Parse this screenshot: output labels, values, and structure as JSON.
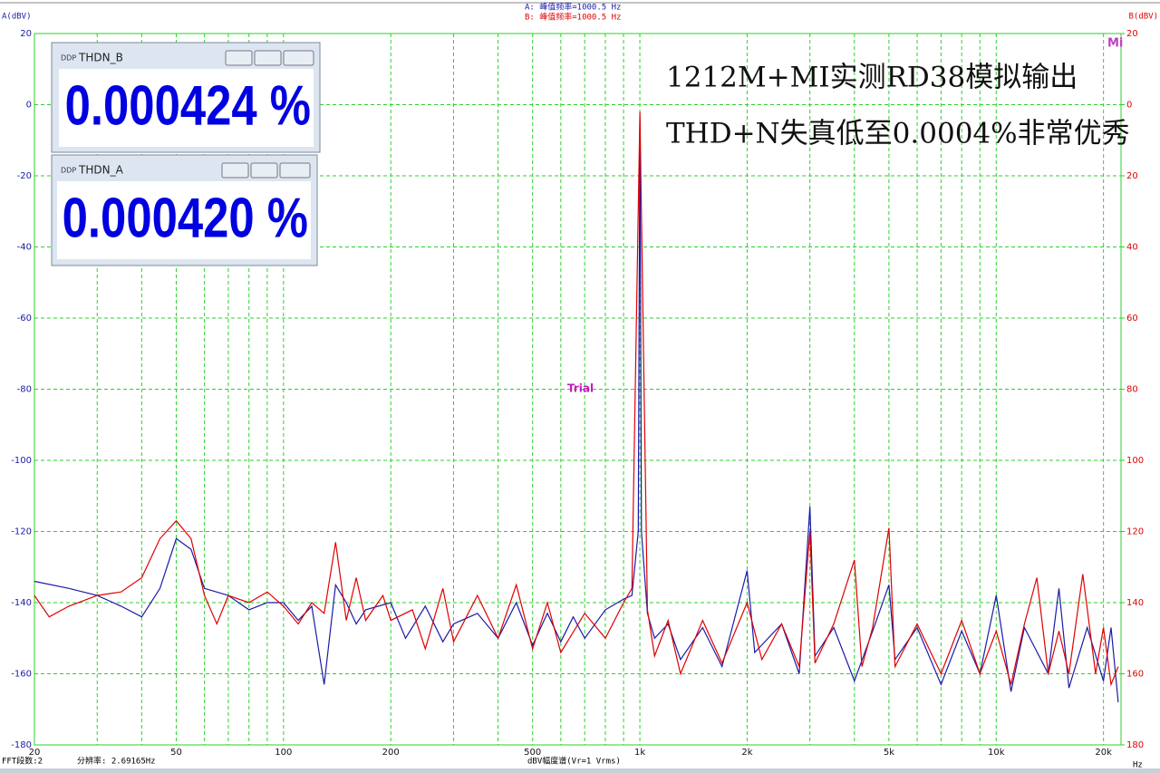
{
  "header": {
    "channel_a": "A(dBV)",
    "channel_b": "B(dBV)",
    "peak_a": "A:  峰值频率=1000.5 Hz",
    "peak_b": "B:  峰值频率=1000.5 Hz",
    "corner": "Mi"
  },
  "chart_data": {
    "type": "line",
    "xscale": "log",
    "grid": true,
    "xlabel": "dBV幅度谱(Vr=1 Vrms)",
    "xunit": "Hz",
    "watermark": "Trial",
    "annotations": [
      "1212M+MI实测RD38模拟输出",
      "THD+N失真低至0.0004%非常优秀"
    ],
    "xlim": [
      20,
      22400
    ],
    "xticks": [
      20,
      50,
      100,
      200,
      500,
      {
        "value": 1000,
        "label": "1k"
      },
      {
        "value": 2000,
        "label": "2k"
      },
      {
        "value": 5000,
        "label": "5k"
      },
      {
        "value": 10000,
        "label": "10k"
      },
      {
        "value": 20000,
        "label": "20k"
      }
    ],
    "xminorticks": [
      30,
      40,
      60,
      70,
      80,
      90,
      300,
      400,
      600,
      700,
      800,
      900,
      3000,
      4000,
      6000,
      7000,
      8000,
      9000
    ],
    "ylim": [
      -180,
      20
    ],
    "yticks": [
      20,
      0,
      -20,
      -40,
      -60,
      -80,
      -100,
      -120,
      -140,
      -160,
      -180
    ],
    "y2lim": [
      -180,
      20
    ],
    "y2ticks": [
      20,
      0,
      {
        "value": -20,
        "label": "20"
      },
      {
        "value": -40,
        "label": "40"
      },
      {
        "value": -60,
        "label": "60"
      },
      {
        "value": -80,
        "label": "80"
      },
      {
        "value": -100,
        "label": "100"
      },
      {
        "value": -120,
        "label": "120"
      },
      {
        "value": -140,
        "label": "140"
      },
      {
        "value": -160,
        "label": "160"
      },
      {
        "value": -180,
        "label": "180"
      }
    ],
    "series": [
      {
        "name": "A",
        "color": "#1a1aa8",
        "x": [
          20,
          25,
          30,
          35,
          40,
          45,
          50,
          55,
          60,
          70,
          80,
          90,
          100,
          110,
          120,
          130,
          140,
          150,
          160,
          170,
          200,
          220,
          250,
          280,
          300,
          350,
          400,
          450,
          500,
          550,
          600,
          650,
          700,
          800,
          900,
          950,
          990,
          1000.5,
          1010,
          1050,
          1100,
          1200,
          1300,
          1500,
          1700,
          2000,
          2100,
          2500,
          2800,
          3000,
          3100,
          3500,
          4000,
          4500,
          5000,
          5200,
          6000,
          7000,
          8000,
          9000,
          10000,
          11000,
          12000,
          14000,
          15000,
          16000,
          18000,
          20000,
          21000,
          22000
        ],
        "values": [
          -134,
          -136,
          -138,
          -141,
          -144,
          -136,
          -122,
          -125,
          -136,
          -138,
          -142,
          -140,
          -140,
          -145,
          -141,
          -163,
          -135,
          -140,
          -146,
          -142,
          -140,
          -150,
          -141,
          -151,
          -146,
          -143,
          -150,
          -140,
          -152,
          -143,
          -151,
          -144,
          -150,
          -142,
          -139,
          -138,
          -120,
          -4,
          -120,
          -143,
          -150,
          -146,
          -156,
          -147,
          -158,
          -131,
          -154,
          -146,
          -160,
          -113,
          -155,
          -147,
          -162,
          -148,
          -135,
          -156,
          -147,
          -163,
          -148,
          -160,
          -138,
          -165,
          -147,
          -160,
          -136,
          -164,
          -147,
          -162,
          -147,
          -168
        ]
      },
      {
        "name": "B",
        "color": "#e00000",
        "x": [
          20,
          22,
          25,
          30,
          35,
          40,
          45,
          50,
          55,
          60,
          65,
          70,
          80,
          90,
          100,
          110,
          120,
          130,
          140,
          150,
          160,
          170,
          190,
          200,
          230,
          250,
          280,
          300,
          350,
          400,
          450,
          500,
          550,
          600,
          700,
          800,
          900,
          950,
          1000.5,
          1050,
          1100,
          1200,
          1300,
          1500,
          1700,
          2000,
          2200,
          2500,
          2800,
          3000,
          3100,
          3500,
          4000,
          4200,
          4500,
          5000,
          5200,
          6000,
          7000,
          8000,
          9000,
          10000,
          11000,
          12000,
          13000,
          14000,
          15000,
          16000,
          17500,
          19000,
          20000,
          21000,
          22000
        ],
        "values": [
          -138,
          -144,
          -141,
          -138,
          -137,
          -133,
          -122,
          -117,
          -122,
          -138,
          -146,
          -138,
          -140,
          -137,
          -141,
          -146,
          -140,
          -143,
          -123,
          -145,
          -133,
          -145,
          -138,
          -145,
          -142,
          -153,
          -136,
          -151,
          -138,
          -150,
          -135,
          -153,
          -140,
          -154,
          -143,
          -150,
          -140,
          -136,
          -2,
          -142,
          -155,
          -145,
          -160,
          -145,
          -157,
          -140,
          -156,
          -146,
          -158,
          -120,
          -157,
          -146,
          -128,
          -158,
          -147,
          -119,
          -158,
          -146,
          -160,
          -145,
          -160,
          -148,
          -163,
          -146,
          -133,
          -160,
          -148,
          -160,
          -132,
          -160,
          -147,
          -163,
          -158
        ]
      }
    ]
  },
  "windows": [
    {
      "title": "THDN_B",
      "value": "0.000424 %"
    },
    {
      "title": "THDN_A",
      "value": "0.000420 %"
    }
  ],
  "status": {
    "fft": "FFT段数:2",
    "resolution": "分辨率: 2.69165Hz"
  }
}
